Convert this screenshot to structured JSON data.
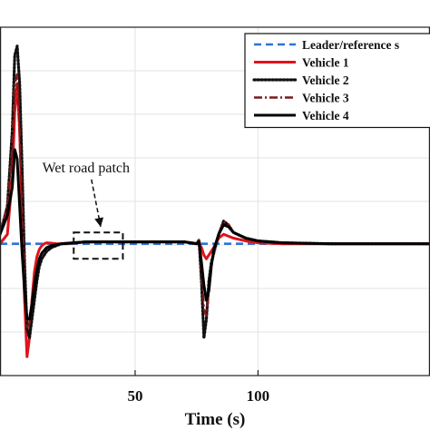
{
  "chart_data": {
    "type": "line",
    "title": "",
    "xlabel": "Time (s)",
    "ylabel": "",
    "xlim": [
      -5,
      170
    ],
    "ylim": [
      -0.7,
      1.15
    ],
    "x_ticks": [
      50,
      100
    ],
    "grid": true,
    "legend_placement": "top-right",
    "series": [
      {
        "name": "Leader/reference s",
        "color": "#2f74d0",
        "style": "dashed",
        "x": [
          -5,
          170
        ],
        "y": [
          0,
          0
        ]
      },
      {
        "name": "Vehicle 1",
        "color": "#e0131b",
        "style": "solid",
        "x": [
          -5,
          -2,
          0,
          1,
          2,
          3,
          4,
          5,
          6,
          7,
          8,
          9,
          10,
          11,
          12,
          13,
          14,
          16,
          18,
          22,
          26,
          30,
          40,
          50,
          60,
          70,
          76,
          77,
          78,
          79,
          80,
          82,
          84,
          86,
          88,
          90,
          95,
          100,
          110,
          130,
          150,
          170
        ],
        "y": [
          0.0,
          0.05,
          0.35,
          0.7,
          0.85,
          0.6,
          0.15,
          -0.3,
          -0.6,
          -0.5,
          -0.3,
          -0.15,
          -0.07,
          -0.03,
          -0.01,
          0.0,
          0.005,
          0.003,
          0.0,
          0.0,
          0.005,
          0.01,
          0.01,
          0.01,
          0.01,
          0.01,
          0.0,
          -0.02,
          -0.06,
          -0.08,
          -0.06,
          -0.02,
          0.03,
          0.05,
          0.04,
          0.03,
          0.015,
          0.005,
          0.0,
          0.0,
          0.0,
          0.0
        ]
      },
      {
        "name": "Vehicle 2",
        "color": "#111111",
        "style": "dotted",
        "x": [
          -5,
          -2,
          0,
          1,
          2,
          3,
          4,
          5,
          6,
          7,
          8,
          9,
          10,
          11,
          12,
          14,
          16,
          20,
          25,
          30,
          40,
          50,
          60,
          70,
          75,
          76,
          77,
          78,
          79,
          80,
          81,
          82,
          84,
          86,
          88,
          90,
          95,
          100,
          110,
          130,
          150,
          170
        ],
        "y": [
          0.05,
          0.2,
          0.6,
          1.0,
          1.05,
          0.85,
          0.4,
          -0.1,
          -0.45,
          -0.5,
          -0.4,
          -0.3,
          -0.2,
          -0.12,
          -0.08,
          -0.04,
          -0.02,
          0.0,
          0.005,
          0.01,
          0.01,
          0.01,
          0.01,
          0.01,
          0.0,
          0.02,
          -0.2,
          -0.5,
          -0.4,
          -0.2,
          -0.1,
          -0.05,
          0.05,
          0.12,
          0.1,
          0.06,
          0.03,
          0.015,
          0.005,
          0.0,
          0.0,
          0.0
        ]
      },
      {
        "name": "Vehicle 3",
        "color": "#7a1a1a",
        "style": "dashdot",
        "x": [
          -5,
          -2,
          0,
          1,
          2,
          3,
          4,
          5,
          6,
          7,
          8,
          9,
          10,
          11,
          12,
          14,
          16,
          20,
          25,
          30,
          40,
          50,
          60,
          70,
          75,
          76,
          77,
          78,
          79,
          80,
          81,
          82,
          84,
          86,
          88,
          90,
          95,
          100,
          110,
          130,
          150,
          170
        ],
        "y": [
          0.05,
          0.2,
          0.5,
          0.85,
          0.9,
          0.6,
          0.2,
          -0.2,
          -0.45,
          -0.42,
          -0.32,
          -0.22,
          -0.14,
          -0.08,
          -0.05,
          -0.02,
          -0.01,
          0.0,
          0.005,
          0.01,
          0.01,
          0.01,
          0.01,
          0.01,
          0.0,
          0.02,
          -0.15,
          -0.35,
          -0.38,
          -0.25,
          -0.12,
          -0.05,
          0.05,
          0.12,
          0.1,
          0.06,
          0.03,
          0.015,
          0.005,
          0.0,
          0.0,
          0.0
        ]
      },
      {
        "name": "Vehicle 4",
        "color": "#000000",
        "style": "solid",
        "x": [
          -5,
          -2,
          0,
          1,
          2,
          3,
          4,
          5,
          6,
          7,
          8,
          9,
          10,
          11,
          12,
          14,
          16,
          20,
          25,
          30,
          40,
          50,
          60,
          70,
          75,
          76,
          77,
          78,
          79,
          80,
          81,
          82,
          84,
          86,
          88,
          90,
          95,
          100,
          110,
          130,
          150,
          170
        ],
        "y": [
          0.05,
          0.15,
          0.3,
          0.5,
          0.45,
          0.2,
          -0.05,
          -0.25,
          -0.4,
          -0.4,
          -0.32,
          -0.22,
          -0.14,
          -0.08,
          -0.05,
          -0.02,
          -0.01,
          0.0,
          0.005,
          0.01,
          0.01,
          0.01,
          0.01,
          0.01,
          0.0,
          0.01,
          -0.1,
          -0.22,
          -0.3,
          -0.25,
          -0.12,
          -0.03,
          0.05,
          0.1,
          0.09,
          0.06,
          0.03,
          0.015,
          0.005,
          0.0,
          0.0,
          0.0
        ]
      }
    ],
    "annotations": [
      {
        "text": "Wet road patch",
        "box_x": [
          25,
          45
        ],
        "box_y": [
          -0.08,
          0.06
        ],
        "label_x": 30,
        "label_y": 0.38
      }
    ]
  }
}
